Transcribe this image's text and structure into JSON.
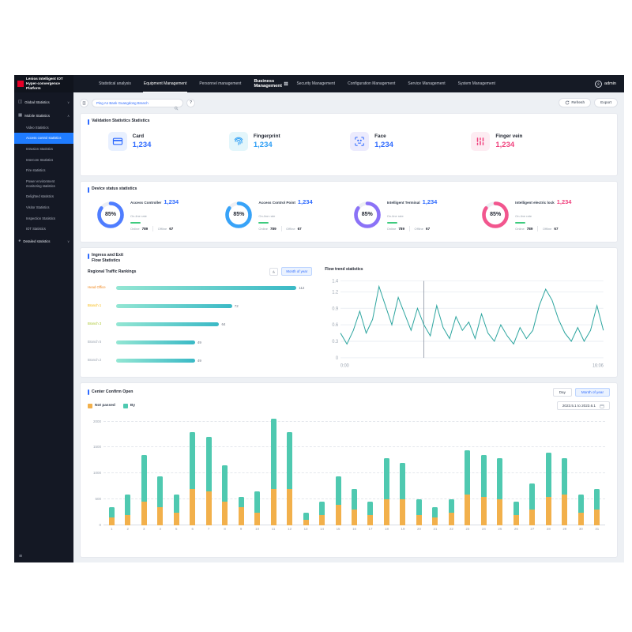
{
  "brand": {
    "title": "Lenios Intelligent IOT Hyper-convergence Platform"
  },
  "nav": {
    "items": [
      {
        "label": "Statistical analysis",
        "active": false,
        "primary": false
      },
      {
        "label": "Equipment Management",
        "active": true,
        "primary": false
      },
      {
        "label": "Personnel management",
        "active": false,
        "primary": false
      },
      {
        "label": "Business Management",
        "active": false,
        "primary": true
      },
      {
        "label": "Security Management",
        "active": false,
        "primary": false
      },
      {
        "label": "Configuration Management",
        "active": false,
        "primary": false
      },
      {
        "label": "Service Management",
        "active": false,
        "primary": false
      },
      {
        "label": "System Management",
        "active": false,
        "primary": false
      }
    ],
    "user": "admin"
  },
  "sidebar": {
    "groups": [
      {
        "label": "Global Statistics",
        "expanded": false,
        "icon": "grid-icon",
        "children": []
      },
      {
        "label": "Mobile Statistics",
        "expanded": true,
        "icon": "panel-icon",
        "children": [
          {
            "label": "Video Statistics",
            "active": false
          },
          {
            "label": "Access control statistics",
            "active": true
          },
          {
            "label": "Intrusion Statistics",
            "active": false
          },
          {
            "label": "Intercom Statistics",
            "active": false
          },
          {
            "label": "Fire statistics",
            "active": false
          },
          {
            "label": "Power environment monitoring statistics",
            "active": false
          },
          {
            "label": "Delighted statistics",
            "active": false
          },
          {
            "label": "Visitor Statistics",
            "active": false
          },
          {
            "label": "Inspection Statistics",
            "active": false
          },
          {
            "label": "IOT Statistics",
            "active": false
          }
        ]
      },
      {
        "label": "Detailed statistics",
        "expanded": false,
        "icon": "pie-icon",
        "children": []
      }
    ]
  },
  "icons": {
    "chevron_down": "∨",
    "chevron_up": "∧",
    "menu": "≡",
    "help": "?"
  },
  "toolbar": {
    "search_value": "Ping An Bank Guangdong Branch",
    "refresh_label": "Refresh",
    "export_label": "Export"
  },
  "validation": {
    "title": "Validation Statistics Statistics",
    "tiles": [
      {
        "label": "Card",
        "value": "1,234",
        "color": "#2f6bff",
        "bg": "#e8f0ff",
        "icon": "card"
      },
      {
        "label": "Fingerprint",
        "value": "1,234",
        "color": "#2f9ff5",
        "bg": "#e3f6fb",
        "icon": "fingerprint"
      },
      {
        "label": "Face",
        "value": "1,234",
        "color": "#2f6bff",
        "bg": "#ecebfd",
        "icon": "face"
      },
      {
        "label": "Finger vein",
        "value": "1,234",
        "color": "#f0417d",
        "bg": "#fdecf2",
        "icon": "vein"
      }
    ]
  },
  "device_status": {
    "title": "Device status statistics",
    "gauges": [
      {
        "name": "Access Controller",
        "value": "1,234",
        "percent": 85,
        "percent_label": "85%",
        "rate_label": "On-line rate",
        "online_label": "Online",
        "online": "789",
        "offline_label": "Offline",
        "offline": "67",
        "color": "#4f7dff",
        "value_color": "#2f6bff"
      },
      {
        "name": "Access Control Point",
        "value": "1,234",
        "percent": 85,
        "percent_label": "85%",
        "rate_label": "On-line rate",
        "online_label": "Online",
        "online": "789",
        "offline_label": "Offline",
        "offline": "67",
        "color": "#38a3f8",
        "value_color": "#2f6bff"
      },
      {
        "name": "Intelligent Terminal",
        "value": "1,234",
        "percent": 85,
        "percent_label": "85%",
        "rate_label": "On-line rate",
        "online_label": "Online",
        "online": "789",
        "offline_label": "Offline",
        "offline": "67",
        "color": "#8b72f7",
        "value_color": "#2f6bff"
      },
      {
        "name": "Intelligent electric lock",
        "value": "1,234",
        "percent": 85,
        "percent_label": "85%",
        "rate_label": "On-line rate",
        "online_label": "Online",
        "online": "789",
        "offline_label": "Offline",
        "offline": "67",
        "color": "#f2568e",
        "value_color": "#f0417d"
      }
    ]
  },
  "flow": {
    "title_line1": "Ingress and Exit",
    "title_line2": "Flow Statistics",
    "ranking": {
      "title": "Regional Traffic Rankings",
      "toggle_label": "Month of year",
      "max": 112,
      "rows": [
        {
          "label": "Head Office",
          "value": 112,
          "label_color": "#f08519"
        },
        {
          "label": "Branch 1",
          "value": 72,
          "label_color": "#f7b500"
        },
        {
          "label": "Branch 3",
          "value": 64,
          "label_color": "#a8c62c"
        },
        {
          "label": "Branch 5",
          "value": 49,
          "label_color": "#98a1ae"
        },
        {
          "label": "Branch 2",
          "value": 49,
          "label_color": "#98a1ae"
        }
      ]
    },
    "trend": {
      "title": "Flow trend statistics",
      "x_start": "0:00",
      "x_end": "16:06",
      "y_ticks": [
        0,
        0.3,
        0.6,
        0.9,
        1.2,
        1.4
      ],
      "y_max": 1.4,
      "marker_index": 13,
      "values": [
        0.45,
        0.25,
        0.5,
        0.85,
        0.45,
        0.7,
        1.3,
        0.95,
        0.6,
        1.1,
        0.8,
        0.5,
        0.9,
        0.6,
        0.4,
        0.95,
        0.55,
        0.35,
        0.75,
        0.5,
        0.65,
        0.35,
        0.8,
        0.45,
        0.3,
        0.6,
        0.4,
        0.25,
        0.55,
        0.35,
        0.5,
        0.95,
        1.25,
        1.05,
        0.7,
        0.45,
        0.3,
        0.55,
        0.3,
        0.5,
        0.95,
        0.5
      ]
    }
  },
  "confirm_open": {
    "title": "Center Confirm Open",
    "legend": [
      {
        "label": "Not passed",
        "color": "#f2b04b"
      },
      {
        "label": "By",
        "color": "#4fc9b0"
      }
    ],
    "buttons": [
      {
        "label": "Day",
        "active": false
      },
      {
        "label": "Month of year",
        "active": true
      }
    ],
    "date_range": "2023.5.1 to 2023.6.1",
    "chart": {
      "type": "stacked-bar",
      "y_ticks": [
        0,
        500,
        1000,
        1500,
        2000
      ],
      "y_max": 2100,
      "categories": [
        1,
        2,
        3,
        4,
        5,
        6,
        7,
        8,
        9,
        10,
        11,
        12,
        13,
        14,
        15,
        16,
        17,
        18,
        19,
        20,
        21,
        22,
        23,
        24,
        25,
        26,
        27,
        28,
        29,
        30,
        31
      ],
      "series": [
        {
          "name": "Not passed",
          "color": "#f2b04b",
          "values": [
            150,
            200,
            450,
            350,
            250,
            700,
            650,
            450,
            350,
            250,
            700,
            700,
            100,
            200,
            400,
            300,
            200,
            500,
            500,
            200,
            150,
            250,
            600,
            550,
            500,
            200,
            300,
            550,
            600,
            250,
            300
          ]
        },
        {
          "name": "By",
          "color": "#4fc9b0",
          "values": [
            200,
            400,
            900,
            600,
            350,
            1100,
            1050,
            700,
            200,
            400,
            1350,
            1100,
            150,
            250,
            550,
            400,
            250,
            800,
            700,
            300,
            200,
            250,
            850,
            800,
            800,
            250,
            500,
            850,
            700,
            350,
            400
          ]
        }
      ]
    }
  }
}
